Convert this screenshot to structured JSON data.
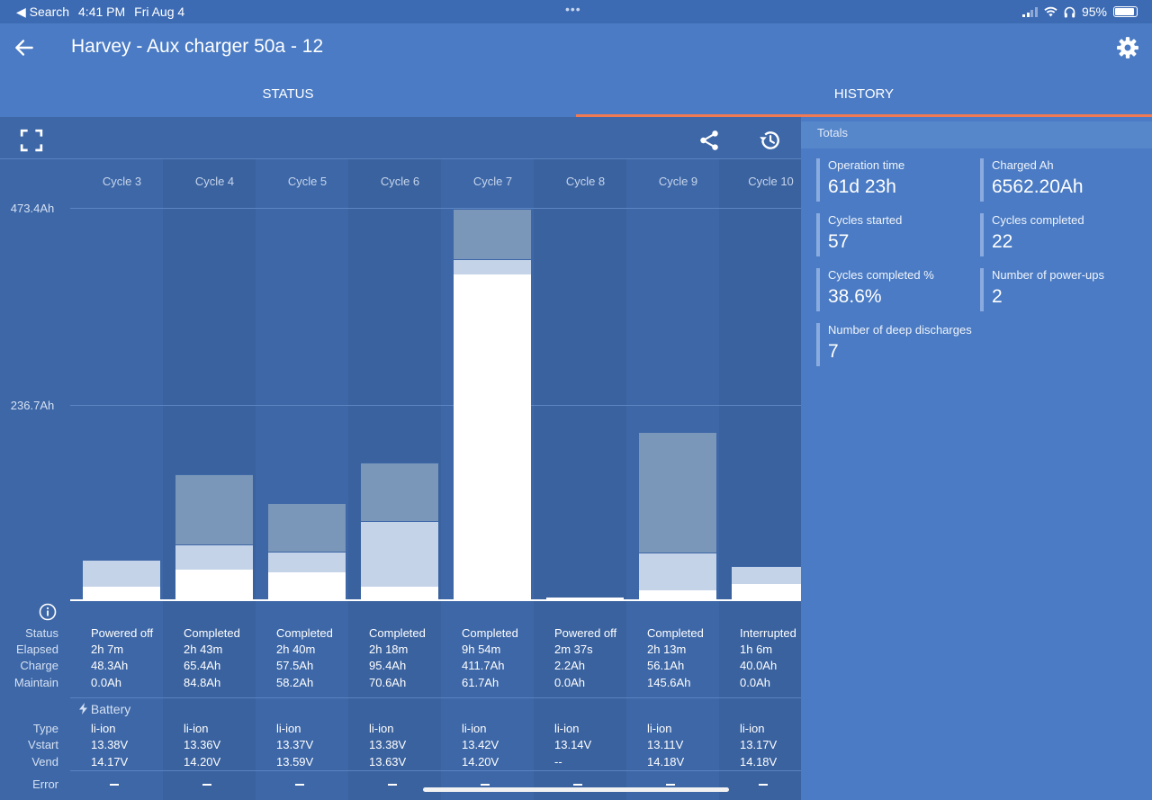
{
  "status_bar": {
    "back_app": "Search",
    "time": "4:41 PM",
    "date": "Fri Aug 4",
    "battery": "95%",
    "battery_level": 0.95
  },
  "header": {
    "title": "Harvey - Aux charger 50a - 12"
  },
  "tabs": [
    {
      "label": "STATUS",
      "active": false
    },
    {
      "label": "HISTORY",
      "active": true
    }
  ],
  "chart_data": {
    "type": "bar",
    "stacked": true,
    "title": "",
    "xlabel": "",
    "ylabel": "",
    "y_ticks": [
      "473.4Ah",
      "236.7Ah"
    ],
    "ylim": [
      0,
      473.4
    ],
    "categories": [
      "Cycle 3",
      "Cycle 4",
      "Cycle 5",
      "Cycle 6",
      "Cycle 7",
      "Cycle 8",
      "Cycle 9",
      "Cycle 10"
    ],
    "series": [
      {
        "values": [
          15,
          36,
          33,
          15,
          393,
          2,
          11,
          19
        ]
      },
      {
        "values": [
          33,
          30,
          25,
          80,
          18,
          0,
          46,
          21
        ]
      },
      {
        "values": [
          0,
          84.8,
          58.2,
          70.6,
          61.7,
          0,
          145.6,
          0
        ]
      }
    ],
    "colors": [
      "#ffffff",
      "#c4d3e8",
      "#7a96b8"
    ],
    "grid": true
  },
  "row_labels": {
    "status": "Status",
    "elapsed": "Elapsed",
    "charge": "Charge",
    "maintain": "Maintain",
    "battery_section": "Battery",
    "type": "Type",
    "vstart": "Vstart",
    "vend": "Vend",
    "error": "Error"
  },
  "cycles": [
    {
      "status": "Powered off",
      "elapsed": "2h 7m",
      "charge": "48.3Ah",
      "maintain": "0.0Ah",
      "type": "li-ion",
      "vstart": "13.38V",
      "vend": "14.17V"
    },
    {
      "status": "Completed",
      "elapsed": "2h 43m",
      "charge": "65.4Ah",
      "maintain": "84.8Ah",
      "type": "li-ion",
      "vstart": "13.36V",
      "vend": "14.20V"
    },
    {
      "status": "Completed",
      "elapsed": "2h 40m",
      "charge": "57.5Ah",
      "maintain": "58.2Ah",
      "type": "li-ion",
      "vstart": "13.37V",
      "vend": "13.59V"
    },
    {
      "status": "Completed",
      "elapsed": "2h 18m",
      "charge": "95.4Ah",
      "maintain": "70.6Ah",
      "type": "li-ion",
      "vstart": "13.38V",
      "vend": "13.63V"
    },
    {
      "status": "Completed",
      "elapsed": "9h 54m",
      "charge": "411.7Ah",
      "maintain": "61.7Ah",
      "type": "li-ion",
      "vstart": "13.42V",
      "vend": "14.20V"
    },
    {
      "status": "Powered off",
      "elapsed": "2m 37s",
      "charge": "2.2Ah",
      "maintain": "0.0Ah",
      "type": "li-ion",
      "vstart": "13.14V",
      "vend": "--"
    },
    {
      "status": "Completed",
      "elapsed": "2h 13m",
      "charge": "56.1Ah",
      "maintain": "145.6Ah",
      "type": "li-ion",
      "vstart": "13.11V",
      "vend": "14.18V"
    },
    {
      "status": "Interrupted",
      "elapsed": "1h 6m",
      "charge": "40.0Ah",
      "maintain": "0.0Ah",
      "type": "li-ion",
      "vstart": "13.17V",
      "vend": "14.18V"
    }
  ],
  "icons": {
    "back": "arrow-left-icon",
    "settings": "gear-icon",
    "fullscreen": "fullscreen-icon",
    "share": "share-icon",
    "history": "history-icon",
    "info": "info-icon",
    "battery": "lightning-icon"
  },
  "totals": {
    "heading": "Totals",
    "stats": [
      {
        "label": "Operation time",
        "value": "61d 23h"
      },
      {
        "label": "Charged Ah",
        "value": "6562.20Ah"
      },
      {
        "label": "Cycles started",
        "value": "57"
      },
      {
        "label": "Cycles completed",
        "value": "22"
      },
      {
        "label": "Cycles completed %",
        "value": "38.6%"
      },
      {
        "label": "Number of power-ups",
        "value": "2"
      },
      {
        "label": "Number of deep discharges",
        "value": "7"
      }
    ]
  }
}
